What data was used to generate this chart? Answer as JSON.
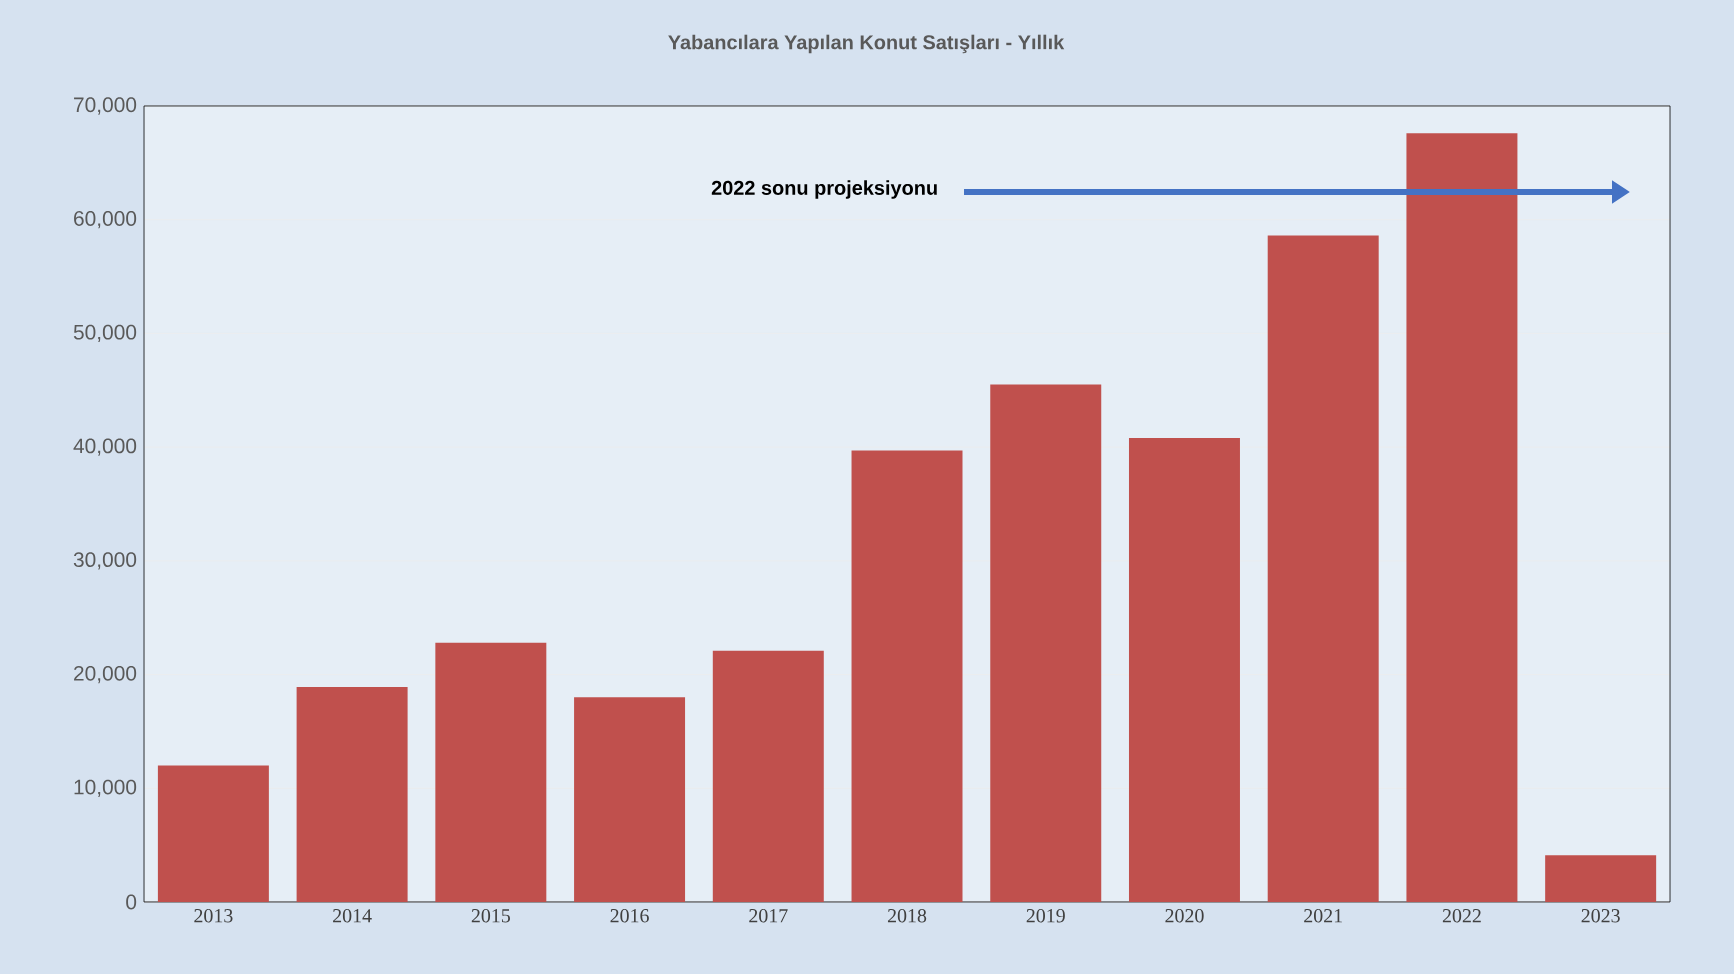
{
  "chart_data": {
    "type": "bar",
    "title": "Yabancılara Yapılan Konut Satışları - Yıllık",
    "categories": [
      "2013",
      "2014",
      "2015",
      "2016",
      "2017",
      "2018",
      "2019",
      "2020",
      "2021",
      "2022",
      "2023"
    ],
    "values": [
      12000,
      18900,
      22800,
      18000,
      22100,
      39700,
      45500,
      40800,
      58600,
      67600,
      4100
    ],
    "color": "#c0504d",
    "ylim": [
      0,
      70000
    ],
    "yticks": [
      0,
      {
        "value": 10000,
        "label": "10,000"
      },
      {
        "value": 20000,
        "label": "20,000"
      },
      {
        "value": 30000,
        "label": "30,000"
      },
      {
        "value": 40000,
        "label": "40,000"
      },
      {
        "value": 50000,
        "label": "50,000"
      },
      {
        "value": 60000,
        "label": "60,000"
      },
      {
        "value": 70000,
        "label": "70,000"
      }
    ],
    "grid": "y",
    "annotations": [
      "2022 sonu projeksiyonu"
    ]
  }
}
